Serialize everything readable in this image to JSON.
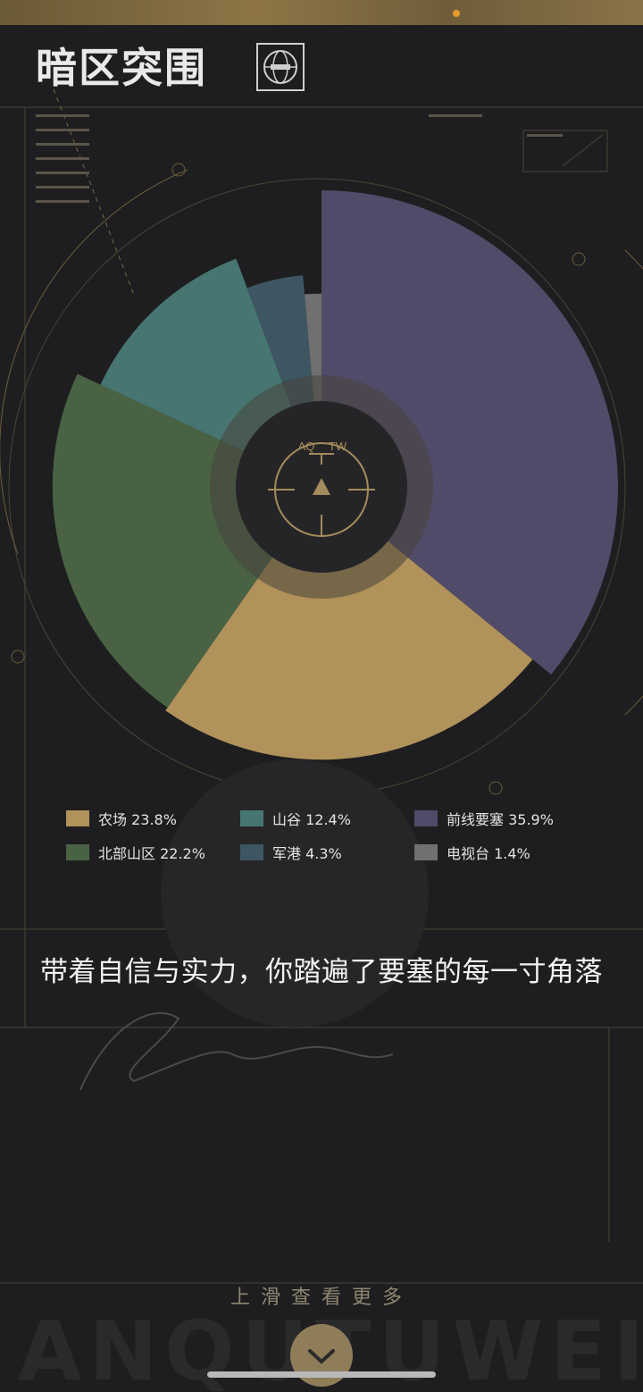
{
  "header": {
    "logo_text": "暗区突围",
    "emblem_icon": "globe-emblem-icon"
  },
  "chart_center": {
    "label_left": "AQ",
    "label_right": "TW"
  },
  "chart_data": {
    "type": "pie",
    "variant": "rose",
    "slices": [
      {
        "label": "前线要塞",
        "value": 35.9,
        "color": "#504b68"
      },
      {
        "label": "农场",
        "value": 23.8,
        "color": "#b0925a"
      },
      {
        "label": "北部山区",
        "value": 22.2,
        "color": "#4a6244"
      },
      {
        "label": "山谷",
        "value": 12.4,
        "color": "#477672"
      },
      {
        "label": "军港",
        "value": 4.3,
        "color": "#3e5562"
      },
      {
        "label": "电视台",
        "value": 1.4,
        "color": "#707070"
      }
    ]
  },
  "legend": {
    "items": [
      {
        "text": "农场 23.8%",
        "color": "#b0925a"
      },
      {
        "text": "山谷 12.4%",
        "color": "#477672"
      },
      {
        "text": "前线要塞 35.9%",
        "color": "#504b68"
      },
      {
        "text": "北部山区 22.2%",
        "color": "#4a6244"
      },
      {
        "text": "军港 4.3%",
        "color": "#3e5562"
      },
      {
        "text": "电视台 1.4%",
        "color": "#707070"
      }
    ]
  },
  "headline": "带着自信与实力，你踏遍了要塞的每一寸角落",
  "footer": {
    "hint": "上滑查看更多",
    "watermark": "ANQUTUWEI",
    "scroll_icon": "chevron-down-icon"
  }
}
